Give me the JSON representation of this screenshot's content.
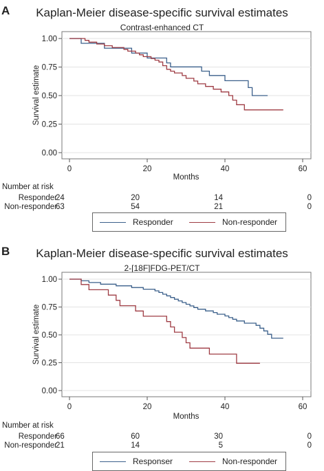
{
  "chart_data": [
    {
      "type": "line",
      "panel_label": "A",
      "title": "Kaplan-Meier disease-specific survival estimates",
      "subtitle": "Contrast-enhanced CT",
      "xlabel": "Months",
      "ylabel": "Survival estimate",
      "xlim": [
        0,
        60
      ],
      "ylim": [
        0,
        1
      ],
      "x_ticks": [
        "0",
        "20",
        "40",
        "60"
      ],
      "y_ticks": [
        "0.00",
        "0.25",
        "0.50",
        "0.75",
        "1.00"
      ],
      "grid": true,
      "legend_position": "bottom",
      "series": [
        {
          "name": "Responder",
          "color": "#3a5f8a",
          "points": [
            [
              0,
              1.0
            ],
            [
              3,
              1.0
            ],
            [
              3,
              0.958
            ],
            [
              9,
              0.958
            ],
            [
              9,
              0.915
            ],
            [
              16,
              0.915
            ],
            [
              16,
              0.872
            ],
            [
              20,
              0.872
            ],
            [
              20,
              0.829
            ],
            [
              25,
              0.829
            ],
            [
              25,
              0.786
            ],
            [
              26,
              0.786
            ],
            [
              26,
              0.751
            ],
            [
              34,
              0.751
            ],
            [
              34,
              0.714
            ],
            [
              36,
              0.714
            ],
            [
              36,
              0.676
            ],
            [
              40,
              0.676
            ],
            [
              40,
              0.63
            ],
            [
              46,
              0.63
            ],
            [
              46,
              0.57
            ],
            [
              47,
              0.57
            ],
            [
              47,
              0.5
            ],
            [
              51,
              0.5
            ]
          ]
        },
        {
          "name": "Non-responder",
          "color": "#9e3a42",
          "points": [
            [
              0,
              1.0
            ],
            [
              4,
              1.0
            ],
            [
              4,
              0.984
            ],
            [
              5,
              0.984
            ],
            [
              5,
              0.968
            ],
            [
              7,
              0.968
            ],
            [
              7,
              0.952
            ],
            [
              9,
              0.952
            ],
            [
              9,
              0.937
            ],
            [
              11,
              0.937
            ],
            [
              11,
              0.921
            ],
            [
              14,
              0.921
            ],
            [
              14,
              0.905
            ],
            [
              15,
              0.905
            ],
            [
              15,
              0.889
            ],
            [
              17,
              0.889
            ],
            [
              17,
              0.873
            ],
            [
              18,
              0.873
            ],
            [
              18,
              0.857
            ],
            [
              19,
              0.857
            ],
            [
              19,
              0.841
            ],
            [
              21,
              0.841
            ],
            [
              21,
              0.825
            ],
            [
              22,
              0.825
            ],
            [
              22,
              0.81
            ],
            [
              23,
              0.81
            ],
            [
              23,
              0.794
            ],
            [
              24,
              0.794
            ],
            [
              24,
              0.762
            ],
            [
              25,
              0.762
            ],
            [
              25,
              0.73
            ],
            [
              26,
              0.73
            ],
            [
              26,
              0.714
            ],
            [
              27,
              0.714
            ],
            [
              27,
              0.698
            ],
            [
              29,
              0.698
            ],
            [
              29,
              0.675
            ],
            [
              30,
              0.675
            ],
            [
              30,
              0.651
            ],
            [
              32,
              0.651
            ],
            [
              32,
              0.627
            ],
            [
              33,
              0.627
            ],
            [
              33,
              0.603
            ],
            [
              35,
              0.603
            ],
            [
              35,
              0.58
            ],
            [
              37,
              0.58
            ],
            [
              37,
              0.556
            ],
            [
              39,
              0.556
            ],
            [
              39,
              0.532
            ],
            [
              41,
              0.532
            ],
            [
              41,
              0.5
            ],
            [
              42,
              0.5
            ],
            [
              42,
              0.46
            ],
            [
              43,
              0.46
            ],
            [
              43,
              0.42
            ],
            [
              45,
              0.42
            ],
            [
              45,
              0.375
            ],
            [
              55,
              0.375
            ]
          ]
        }
      ],
      "risk_table": {
        "header": "Number at risk",
        "times": [
          0,
          20,
          40,
          60
        ],
        "rows": [
          {
            "label": "Responder",
            "values": [
              "24",
              "20",
              "14",
              "0"
            ]
          },
          {
            "label": "Non-responder",
            "values": [
              "63",
              "54",
              "21",
              "0"
            ]
          }
        ]
      },
      "legend": [
        "Responder",
        "Non-responder"
      ]
    },
    {
      "type": "line",
      "panel_label": "B",
      "title": "Kaplan-Meier disease-specific survival estimates",
      "subtitle": "2-[18F]FDG-PET/CT",
      "xlabel": "Months",
      "ylabel": "Survival estimate",
      "xlim": [
        0,
        60
      ],
      "ylim": [
        0,
        1
      ],
      "x_ticks": [
        "0",
        "20",
        "40",
        "60"
      ],
      "y_ticks": [
        "0.00",
        "0.25",
        "0.50",
        "0.75",
        "1.00"
      ],
      "grid": true,
      "legend_position": "bottom",
      "series": [
        {
          "name": "Responser",
          "color": "#3a5f8a",
          "points": [
            [
              0,
              1.0
            ],
            [
              3,
              1.0
            ],
            [
              3,
              0.985
            ],
            [
              5,
              0.985
            ],
            [
              5,
              0.97
            ],
            [
              8,
              0.97
            ],
            [
              8,
              0.955
            ],
            [
              12,
              0.955
            ],
            [
              12,
              0.94
            ],
            [
              16,
              0.94
            ],
            [
              16,
              0.925
            ],
            [
              19,
              0.925
            ],
            [
              19,
              0.91
            ],
            [
              22,
              0.91
            ],
            [
              22,
              0.895
            ],
            [
              23,
              0.895
            ],
            [
              23,
              0.88
            ],
            [
              24,
              0.88
            ],
            [
              24,
              0.865
            ],
            [
              25,
              0.865
            ],
            [
              25,
              0.85
            ],
            [
              26,
              0.85
            ],
            [
              26,
              0.835
            ],
            [
              27,
              0.835
            ],
            [
              27,
              0.82
            ],
            [
              28,
              0.82
            ],
            [
              28,
              0.805
            ],
            [
              29,
              0.805
            ],
            [
              29,
              0.79
            ],
            [
              30,
              0.79
            ],
            [
              30,
              0.775
            ],
            [
              31,
              0.775
            ],
            [
              31,
              0.76
            ],
            [
              32,
              0.76
            ],
            [
              32,
              0.745
            ],
            [
              33,
              0.745
            ],
            [
              33,
              0.73
            ],
            [
              35,
              0.73
            ],
            [
              35,
              0.715
            ],
            [
              37,
              0.715
            ],
            [
              37,
              0.7
            ],
            [
              38,
              0.7
            ],
            [
              38,
              0.685
            ],
            [
              40,
              0.685
            ],
            [
              40,
              0.67
            ],
            [
              41,
              0.67
            ],
            [
              41,
              0.655
            ],
            [
              42,
              0.655
            ],
            [
              42,
              0.64
            ],
            [
              43,
              0.64
            ],
            [
              43,
              0.625
            ],
            [
              45,
              0.625
            ],
            [
              45,
              0.605
            ],
            [
              48,
              0.605
            ],
            [
              48,
              0.585
            ],
            [
              49,
              0.585
            ],
            [
              49,
              0.56
            ],
            [
              50,
              0.56
            ],
            [
              50,
              0.535
            ],
            [
              51,
              0.535
            ],
            [
              51,
              0.505
            ],
            [
              52,
              0.505
            ],
            [
              52,
              0.47
            ],
            [
              55,
              0.47
            ]
          ]
        },
        {
          "name": "Non-responder",
          "color": "#9e3a42",
          "points": [
            [
              0,
              1.0
            ],
            [
              3,
              1.0
            ],
            [
              3,
              0.952
            ],
            [
              5,
              0.952
            ],
            [
              5,
              0.905
            ],
            [
              10,
              0.905
            ],
            [
              10,
              0.857
            ],
            [
              12,
              0.857
            ],
            [
              12,
              0.81
            ],
            [
              13,
              0.81
            ],
            [
              13,
              0.762
            ],
            [
              17,
              0.762
            ],
            [
              17,
              0.714
            ],
            [
              19,
              0.714
            ],
            [
              19,
              0.667
            ],
            [
              25,
              0.667
            ],
            [
              25,
              0.619
            ],
            [
              26,
              0.619
            ],
            [
              26,
              0.571
            ],
            [
              27,
              0.571
            ],
            [
              27,
              0.524
            ],
            [
              29,
              0.524
            ],
            [
              29,
              0.476
            ],
            [
              30,
              0.476
            ],
            [
              30,
              0.429
            ],
            [
              31,
              0.429
            ],
            [
              31,
              0.381
            ],
            [
              36,
              0.381
            ],
            [
              36,
              0.327
            ],
            [
              43,
              0.327
            ],
            [
              43,
              0.245
            ],
            [
              49,
              0.245
            ]
          ]
        }
      ],
      "risk_table": {
        "header": "Number at risk",
        "times": [
          0,
          20,
          40,
          60
        ],
        "rows": [
          {
            "label": "Responder",
            "values": [
              "66",
              "60",
              "30",
              "0"
            ]
          },
          {
            "label": "Non-responder",
            "values": [
              "21",
              "14",
              "5",
              "0"
            ]
          }
        ]
      },
      "legend": [
        "Responser",
        "Non-responder"
      ]
    }
  ]
}
